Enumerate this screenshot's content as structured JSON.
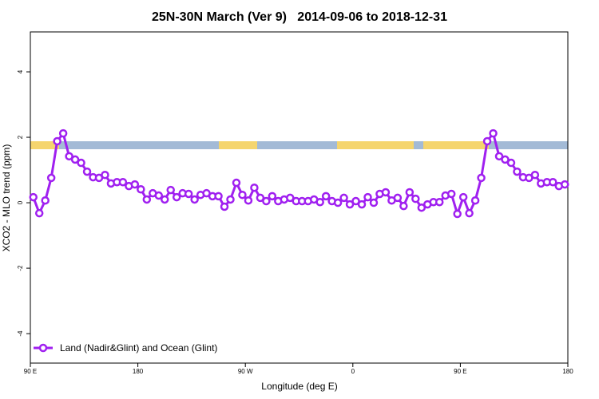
{
  "chart_data": {
    "type": "line",
    "title": "25N-30N March (Ver 9)   2014-09-06 to 2018-12-31",
    "x_label": "Longitude (deg E)",
    "y_label": "XCO2 - MLO trend (ppm)",
    "x": [
      92.5,
      97.5,
      102.5,
      107.5,
      112.5,
      117.5,
      122.5,
      127.5,
      132.5,
      137.5,
      142.5,
      147.5,
      152.5,
      157.5,
      162.5,
      167.5,
      172.5,
      177.5,
      182.5,
      187.5,
      192.5,
      197.5,
      202.5,
      207.5,
      212.5,
      217.5,
      222.5,
      227.5,
      232.5,
      237.5,
      242.5,
      247.5,
      252.5,
      257.5,
      262.5,
      267.5,
      272.5,
      277.5,
      282.5,
      287.5,
      292.5,
      297.5,
      302.5,
      307.5,
      312.5,
      317.5,
      322.5,
      327.5,
      332.5,
      337.5,
      342.5,
      347.5,
      352.5,
      357.5,
      362.5,
      367.5,
      372.5,
      377.5,
      382.5,
      387.5,
      392.5,
      397.5,
      402.5,
      407.5,
      412.5,
      417.5,
      422.5,
      427.5,
      432.5,
      437.5,
      442.5,
      447.5,
      452.5,
      457.5,
      462.5,
      467.5,
      472.5,
      477.5,
      482.5,
      487.5,
      492.5,
      497.5,
      502.5,
      507.5,
      512.5,
      517.5,
      522.5,
      527.5,
      532.5,
      537.5
    ],
    "series": [
      {
        "name": "Land (Nadir&Glint) and Ocean (Glint)",
        "color": "#a020f0",
        "values": [
          0.17,
          -0.32,
          0.07,
          0.76,
          1.88,
          2.12,
          1.42,
          1.32,
          1.22,
          0.95,
          0.78,
          0.76,
          0.85,
          0.59,
          0.63,
          0.63,
          0.51,
          0.56,
          0.41,
          0.1,
          0.29,
          0.22,
          0.1,
          0.39,
          0.17,
          0.29,
          0.27,
          0.1,
          0.24,
          0.29,
          0.2,
          0.2,
          -0.12,
          0.1,
          0.61,
          0.24,
          0.07,
          0.46,
          0.15,
          0.05,
          0.2,
          0.05,
          0.1,
          0.15,
          0.05,
          0.05,
          0.05,
          0.1,
          0.02,
          0.2,
          0.05,
          0,
          0.15,
          -0.05,
          0.05,
          -0.05,
          0.17,
          0,
          0.27,
          0.32,
          0.07,
          0.15,
          -0.1,
          0.32,
          0.12,
          -0.15,
          -0.05,
          0.02,
          0.02,
          0.22,
          0.27,
          -0.34,
          0.17,
          -0.32,
          0.07,
          0.76,
          1.88,
          2.12,
          1.42,
          1.32,
          1.22,
          0.95,
          0.78,
          0.76,
          0.85,
          0.59,
          0.63,
          0.63,
          0.51,
          0.56
        ]
      }
    ],
    "xlim": [
      90,
      540
    ],
    "xticks": [
      {
        "value": 90,
        "label": "90 E"
      },
      180,
      {
        "value": 270,
        "label": "90 W"
      },
      {
        "value": 360,
        "label": "0"
      },
      {
        "value": 450,
        "label": "90 E"
      },
      {
        "value": 540,
        "label": "180"
      }
    ],
    "ylim": [
      -4.9,
      5.22
    ],
    "yticks": [
      -4,
      -2,
      0,
      2,
      4
    ],
    "legend": "bottom-left"
  }
}
